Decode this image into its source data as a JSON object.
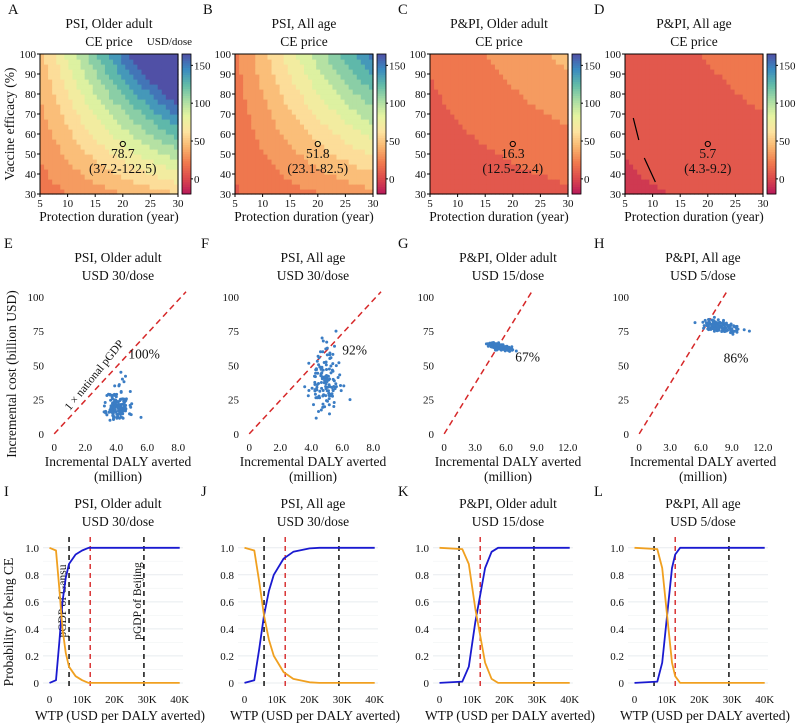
{
  "colors": {
    "frame": "#000000",
    "scatter_point": "#3b7dc4",
    "ce_line": "#d62728",
    "threshold_line": "#000000",
    "prob_ce": "#1a1ad0",
    "prob_not_ce": "#f0a020",
    "colorbar_stops": [
      "#b8195a",
      "#dc4a4c",
      "#f07a4e",
      "#f9b46e",
      "#fde4a0",
      "#e6f4a0",
      "#a8dca4",
      "#62bba8",
      "#3a8ac0",
      "#5050a6"
    ]
  },
  "colorbar_ticks": [
    "150",
    "100",
    "50",
    "0"
  ],
  "colorbar_unit": "USD/dose",
  "chart_data": [
    {
      "panel": "A",
      "type": "heatmap",
      "title": "PSI, Older adult",
      "subtitle": "CE price",
      "xlabel": "Protection duration (year)",
      "ylabel": "Vaccine efficacy (%)",
      "xlim": [
        5,
        30
      ],
      "ylim": [
        30,
        100
      ],
      "x_ticks": [
        "5",
        "10",
        "15",
        "20",
        "25",
        "30"
      ],
      "y_ticks": [
        "30",
        "40",
        "50",
        "60",
        "70",
        "80",
        "90",
        "100"
      ],
      "colorbar_range": [
        -20,
        165
      ],
      "point": {
        "x": 20,
        "y": 55
      },
      "value_label": "78.7",
      "range_label": "(37.2-122.5)",
      "field": {
        "base": 78.7,
        "dx": 3.3,
        "dy": 1.6,
        "dxy": 0.08
      }
    },
    {
      "panel": "B",
      "type": "heatmap",
      "title": "PSI, All age",
      "subtitle": "CE price",
      "xlabel": "Protection duration (year)",
      "xlim": [
        5,
        30
      ],
      "ylim": [
        30,
        100
      ],
      "x_ticks": [
        "5",
        "10",
        "15",
        "20",
        "25",
        "30"
      ],
      "y_ticks": [
        "30",
        "40",
        "50",
        "60",
        "70",
        "80",
        "90",
        "100"
      ],
      "colorbar_range": [
        -20,
        165
      ],
      "point": {
        "x": 20,
        "y": 55
      },
      "value_label": "51.8",
      "range_label": "(23.1-82.5)",
      "field": {
        "base": 51.8,
        "dx": 2.4,
        "dy": 1.05,
        "dxy": 0.06
      }
    },
    {
      "panel": "C",
      "type": "heatmap",
      "title": "P&PI, Older adult",
      "subtitle": "CE price",
      "xlabel": "Protection duration (year)",
      "xlim": [
        5,
        30
      ],
      "ylim": [
        30,
        100
      ],
      "x_ticks": [
        "5",
        "10",
        "15",
        "20",
        "25",
        "30"
      ],
      "y_ticks": [
        "30",
        "40",
        "50",
        "60",
        "70",
        "80",
        "90",
        "100"
      ],
      "colorbar_range": [
        -20,
        165
      ],
      "point": {
        "x": 20,
        "y": 55
      },
      "value_label": "16.3",
      "range_label": "(12.5-22.4)",
      "field": {
        "base": 16.3,
        "dx": 0.6,
        "dy": 0.35,
        "dxy": 0.012
      }
    },
    {
      "panel": "D",
      "type": "heatmap",
      "title": "P&PI, All age",
      "subtitle": "CE price",
      "xlabel": "Protection duration (year)",
      "xlim": [
        5,
        30
      ],
      "ylim": [
        30,
        100
      ],
      "x_ticks": [
        "5",
        "10",
        "15",
        "20",
        "25",
        "30"
      ],
      "y_ticks": [
        "30",
        "40",
        "50",
        "60",
        "70",
        "80",
        "90",
        "100"
      ],
      "colorbar_range": [
        -20,
        165
      ],
      "point": {
        "x": 20,
        "y": 55
      },
      "value_label": "5.7",
      "range_label": "(4.3-9.2)",
      "field": {
        "base": 5.7,
        "dx": 0.35,
        "dy": 0.18,
        "dxy": 0.006
      }
    },
    {
      "panel": "E",
      "type": "scatter",
      "title": "PSI, Older adult",
      "subtitle": "USD 30/dose",
      "xlabel": "Incremental DALY averted",
      "xlabel2": "(million)",
      "ylabel": "Incremental cost (billion USD)",
      "xlim": [
        -0.4,
        8.5
      ],
      "ylim": [
        -3,
        105
      ],
      "x_ticks": [
        0,
        2,
        4,
        6,
        8
      ],
      "x_tick_labels": [
        "0",
        "2.0",
        "4.0",
        "6.0",
        "8.0"
      ],
      "y_ticks": [
        0,
        25,
        50,
        75,
        100
      ],
      "y_tick_labels": [
        "0",
        "25",
        "50",
        "75",
        "100"
      ],
      "ce_line_slope": 12.2,
      "percent_label": "100%",
      "percent_pos": [
        5.8,
        55
      ],
      "line_label": "1 × national pGDP",
      "cloud": {
        "cx": 4.1,
        "cy": 20,
        "sx": 0.35,
        "sy": 5.5,
        "n": 130,
        "seed": 11,
        "tail": [
          [
            4.1,
            20
          ],
          [
            4.3,
            45
          ],
          [
            4.4,
            40
          ],
          [
            4.5,
            38
          ],
          [
            4.2,
            36
          ],
          [
            5.0,
            22
          ],
          [
            5.6,
            12
          ],
          [
            3.4,
            28
          ],
          [
            3.6,
            10
          ],
          [
            4.6,
            42
          ],
          [
            3.9,
            35
          ]
        ]
      }
    },
    {
      "panel": "F",
      "type": "scatter",
      "title": "PSI, All age",
      "subtitle": "USD 30/dose",
      "xlabel": "Incremental DALY averted",
      "xlabel2": "(million)",
      "xlim": [
        -0.4,
        8.5
      ],
      "ylim": [
        -3,
        105
      ],
      "x_ticks": [
        0,
        2,
        4,
        6,
        8
      ],
      "x_tick_labels": [
        "0",
        "2.0",
        "4.0",
        "6.0",
        "8.0"
      ],
      "y_ticks": [
        0,
        25,
        50,
        75,
        100
      ],
      "y_tick_labels": [
        "0",
        "25",
        "50",
        "75",
        "100"
      ],
      "ce_line_slope": 12.2,
      "percent_label": "92%",
      "percent_pos": [
        6.8,
        58
      ],
      "cloud": {
        "cx": 4.8,
        "cy": 37,
        "sx": 0.45,
        "sy": 10,
        "n": 130,
        "seed": 23,
        "tail": [
          [
            5.0,
            67
          ],
          [
            5.6,
            75
          ],
          [
            4.7,
            70
          ],
          [
            5.2,
            55
          ],
          [
            5.4,
            58
          ],
          [
            6.5,
            25
          ],
          [
            6.1,
            35
          ],
          [
            5.5,
            64
          ],
          [
            4.6,
            60
          ]
        ]
      }
    },
    {
      "panel": "G",
      "type": "scatter",
      "title": "P&PI, Older adult",
      "subtitle": "USD 15/dose",
      "xlabel": "Incremental DALY averted",
      "xlabel2": "(million)",
      "xlim": [
        -0.6,
        12.8
      ],
      "ylim": [
        -3,
        105
      ],
      "x_ticks": [
        0,
        3,
        6,
        9,
        12
      ],
      "x_tick_labels": [
        "0",
        "3.0",
        "6.0",
        "9.0",
        "12.0"
      ],
      "y_ticks": [
        0,
        25,
        50,
        75,
        100
      ],
      "y_tick_labels": [
        "0",
        "25",
        "50",
        "75",
        "100"
      ],
      "ce_line_slope": 12.2,
      "percent_label": "67%",
      "percent_pos": [
        8.1,
        53
      ],
      "cloud": {
        "cx": 5.4,
        "cy": 63.5,
        "sx": 0.55,
        "sy": 1.2,
        "n": 110,
        "seed": 37,
        "slope": -1.3,
        "tail": [
          [
            6.6,
            61
          ],
          [
            7.0,
            60.5
          ],
          [
            4.5,
            65.5
          ],
          [
            6.2,
            62
          ]
        ]
      }
    },
    {
      "panel": "H",
      "type": "scatter",
      "title": "P&PI, All age",
      "subtitle": "USD 5/dose",
      "xlabel": "Incremental DALY averted",
      "xlabel2": "(million)",
      "xlim": [
        -0.6,
        12.8
      ],
      "ylim": [
        -3,
        105
      ],
      "x_ticks": [
        0,
        3,
        6,
        9,
        12
      ],
      "x_tick_labels": [
        "0",
        "3.0",
        "6.0",
        "9.0",
        "12.0"
      ],
      "y_ticks": [
        0,
        25,
        50,
        75,
        100
      ],
      "y_tick_labels": [
        "0",
        "25",
        "50",
        "75",
        "100"
      ],
      "ce_line_slope": 12.2,
      "percent_label": "86%",
      "percent_pos": [
        9.4,
        52
      ],
      "cloud": {
        "cx": 7.7,
        "cy": 78.5,
        "sx": 0.9,
        "sy": 2.2,
        "n": 130,
        "seed": 51,
        "slope": -0.9,
        "tail": [
          [
            10.7,
            75
          ],
          [
            10.2,
            76
          ],
          [
            9.6,
            76.5
          ],
          [
            7.3,
            85
          ],
          [
            6.8,
            82
          ]
        ]
      }
    },
    {
      "panel": "I",
      "type": "line",
      "title": "PSI, Older adult",
      "subtitle": "USD 30/dose",
      "xlabel": "WTP (USD per DALY averted)",
      "ylabel": "Probability of being CE",
      "xlim": [
        -2000,
        41000
      ],
      "ylim": [
        -0.03,
        1.05
      ],
      "x_ticks": [
        0,
        10000,
        20000,
        30000,
        40000
      ],
      "x_tick_labels": [
        "0",
        "10K",
        "20K",
        "30K",
        "40K"
      ],
      "y_ticks": [
        0,
        0.2,
        0.4,
        0.6,
        0.8,
        1.0
      ],
      "y_tick_labels": [
        "0",
        "0.2",
        "0.4",
        "0.6",
        "0.8",
        "1.0"
      ],
      "vlines": [
        {
          "x": 6000,
          "color": "black"
        },
        {
          "x": 12500,
          "color": "red"
        },
        {
          "x": 29000,
          "color": "black"
        }
      ],
      "vline_labels": [
        {
          "text": "pGDP of Gansu",
          "x": 6000
        },
        {
          "text": "pGDP of Beijing",
          "x": 29000
        }
      ],
      "series": [
        {
          "color": "prob_ce",
          "points": [
            [
              0,
              0
            ],
            [
              2000,
              0.02
            ],
            [
              3000,
              0.3
            ],
            [
              4000,
              0.6
            ],
            [
              5000,
              0.78
            ],
            [
              6000,
              0.88
            ],
            [
              8000,
              0.95
            ],
            [
              10000,
              0.98
            ],
            [
              12000,
              1
            ],
            [
              40000,
              1
            ]
          ]
        },
        {
          "color": "prob_not_ce",
          "points": [
            [
              0,
              1
            ],
            [
              2000,
              0.98
            ],
            [
              3000,
              0.7
            ],
            [
              4000,
              0.4
            ],
            [
              5000,
              0.22
            ],
            [
              6000,
              0.12
            ],
            [
              8000,
              0.05
            ],
            [
              10000,
              0.02
            ],
            [
              12000,
              0
            ],
            [
              40000,
              0
            ]
          ]
        }
      ]
    },
    {
      "panel": "J",
      "type": "line",
      "title": "PSI, All age",
      "subtitle": "USD 30/dose",
      "xlabel": "WTP (USD per DALY averted)",
      "xlim": [
        -2000,
        41000
      ],
      "ylim": [
        -0.03,
        1.05
      ],
      "x_ticks": [
        0,
        10000,
        20000,
        30000,
        40000
      ],
      "x_tick_labels": [
        "0",
        "10K",
        "20K",
        "30K",
        "40K"
      ],
      "y_ticks": [
        0,
        0.2,
        0.4,
        0.6,
        0.8,
        1.0
      ],
      "y_tick_labels": [
        "0",
        "0.2",
        "0.4",
        "0.6",
        "0.8",
        "1.0"
      ],
      "vlines": [
        {
          "x": 6000,
          "color": "black"
        },
        {
          "x": 12500,
          "color": "red"
        },
        {
          "x": 29000,
          "color": "black"
        }
      ],
      "series": [
        {
          "color": "prob_ce",
          "points": [
            [
              0,
              0
            ],
            [
              3000,
              0.02
            ],
            [
              4500,
              0.25
            ],
            [
              6000,
              0.5
            ],
            [
              7500,
              0.68
            ],
            [
              9000,
              0.8
            ],
            [
              12000,
              0.92
            ],
            [
              15000,
              0.97
            ],
            [
              20000,
              0.995
            ],
            [
              23000,
              1
            ],
            [
              40000,
              1
            ]
          ]
        },
        {
          "color": "prob_not_ce",
          "points": [
            [
              0,
              1
            ],
            [
              3000,
              0.98
            ],
            [
              4500,
              0.75
            ],
            [
              6000,
              0.5
            ],
            [
              7500,
              0.32
            ],
            [
              9000,
              0.2
            ],
            [
              12000,
              0.08
            ],
            [
              15000,
              0.03
            ],
            [
              20000,
              0.005
            ],
            [
              23000,
              0
            ],
            [
              40000,
              0
            ]
          ]
        }
      ]
    },
    {
      "panel": "K",
      "type": "line",
      "title": "P&PI, Older adult",
      "subtitle": "USD 15/dose",
      "xlabel": "WTP (USD per DALY averted)",
      "xlim": [
        -2000,
        41000
      ],
      "ylim": [
        -0.03,
        1.05
      ],
      "x_ticks": [
        0,
        10000,
        20000,
        30000,
        40000
      ],
      "x_tick_labels": [
        "0",
        "10K",
        "20K",
        "30K",
        "40K"
      ],
      "y_ticks": [
        0,
        0.2,
        0.4,
        0.6,
        0.8,
        1.0
      ],
      "y_tick_labels": [
        "0",
        "0.2",
        "0.4",
        "0.6",
        "0.8",
        "1.0"
      ],
      "vlines": [
        {
          "x": 6000,
          "color": "black"
        },
        {
          "x": 12500,
          "color": "red"
        },
        {
          "x": 29000,
          "color": "black"
        }
      ],
      "series": [
        {
          "color": "prob_ce",
          "points": [
            [
              0,
              0
            ],
            [
              7000,
              0.01
            ],
            [
              9000,
              0.12
            ],
            [
              11000,
              0.45
            ],
            [
              12500,
              0.65
            ],
            [
              14000,
              0.85
            ],
            [
              16000,
              0.97
            ],
            [
              18000,
              1
            ],
            [
              40000,
              1
            ]
          ]
        },
        {
          "color": "prob_not_ce",
          "points": [
            [
              0,
              1
            ],
            [
              7000,
              0.99
            ],
            [
              9000,
              0.88
            ],
            [
              11000,
              0.55
            ],
            [
              12500,
              0.35
            ],
            [
              14000,
              0.15
            ],
            [
              16000,
              0.03
            ],
            [
              18000,
              0
            ],
            [
              40000,
              0
            ]
          ]
        }
      ]
    },
    {
      "panel": "L",
      "type": "line",
      "title": "P&PI, All age",
      "subtitle": "USD 5/dose",
      "xlabel": "WTP (USD per DALY averted)",
      "xlim": [
        -2000,
        41000
      ],
      "ylim": [
        -0.03,
        1.05
      ],
      "x_ticks": [
        0,
        10000,
        20000,
        30000,
        40000
      ],
      "x_tick_labels": [
        "0",
        "10K",
        "20K",
        "30K",
        "40K"
      ],
      "y_ticks": [
        0,
        0.2,
        0.4,
        0.6,
        0.8,
        1.0
      ],
      "y_tick_labels": [
        "0",
        "0.2",
        "0.4",
        "0.6",
        "0.8",
        "1.0"
      ],
      "vlines": [
        {
          "x": 6000,
          "color": "black"
        },
        {
          "x": 12500,
          "color": "red"
        },
        {
          "x": 29000,
          "color": "black"
        }
      ],
      "series": [
        {
          "color": "prob_ce",
          "points": [
            [
              0,
              0
            ],
            [
              7000,
              0.01
            ],
            [
              8500,
              0.15
            ],
            [
              10000,
              0.5
            ],
            [
              11500,
              0.85
            ],
            [
              12500,
              0.95
            ],
            [
              14000,
              1
            ],
            [
              40000,
              1
            ]
          ]
        },
        {
          "color": "prob_not_ce",
          "points": [
            [
              0,
              1
            ],
            [
              7000,
              0.99
            ],
            [
              8500,
              0.85
            ],
            [
              10000,
              0.5
            ],
            [
              11500,
              0.15
            ],
            [
              12500,
              0.05
            ],
            [
              14000,
              0
            ],
            [
              40000,
              0
            ]
          ]
        }
      ]
    }
  ]
}
